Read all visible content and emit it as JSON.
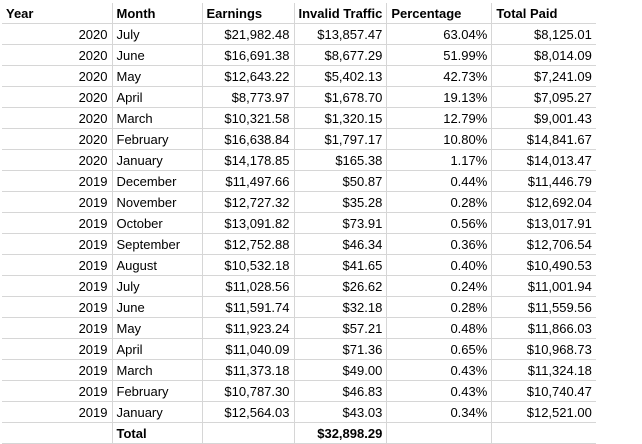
{
  "headers": [
    "Year",
    "Month",
    "Earnings",
    "Invalid Traffic",
    "Percentage",
    "Total Paid"
  ],
  "rows": [
    [
      "2020",
      "July",
      "$21,982.48",
      "$13,857.47",
      "63.04%",
      "$8,125.01"
    ],
    [
      "2020",
      "June",
      "$16,691.38",
      "$8,677.29",
      "51.99%",
      "$8,014.09"
    ],
    [
      "2020",
      "May",
      "$12,643.22",
      "$5,402.13",
      "42.73%",
      "$7,241.09"
    ],
    [
      "2020",
      "April",
      "$8,773.97",
      "$1,678.70",
      "19.13%",
      "$7,095.27"
    ],
    [
      "2020",
      "March",
      "$10,321.58",
      "$1,320.15",
      "12.79%",
      "$9,001.43"
    ],
    [
      "2020",
      "February",
      "$16,638.84",
      "$1,797.17",
      "10.80%",
      "$14,841.67"
    ],
    [
      "2020",
      "January",
      "$14,178.85",
      "$165.38",
      "1.17%",
      "$14,013.47"
    ],
    [
      "2019",
      "December",
      "$11,497.66",
      "$50.87",
      "0.44%",
      "$11,446.79"
    ],
    [
      "2019",
      "November",
      "$12,727.32",
      "$35.28",
      "0.28%",
      "$12,692.04"
    ],
    [
      "2019",
      "October",
      "$13,091.82",
      "$73.91",
      "0.56%",
      "$13,017.91"
    ],
    [
      "2019",
      "September",
      "$12,752.88",
      "$46.34",
      "0.36%",
      "$12,706.54"
    ],
    [
      "2019",
      "August",
      "$10,532.18",
      "$41.65",
      "0.40%",
      "$10,490.53"
    ],
    [
      "2019",
      "July",
      "$11,028.56",
      "$26.62",
      "0.24%",
      "$11,001.94"
    ],
    [
      "2019",
      "June",
      "$11,591.74",
      "$32.18",
      "0.28%",
      "$11,559.56"
    ],
    [
      "2019",
      "May",
      "$11,923.24",
      "$57.21",
      "0.48%",
      "$11,866.03"
    ],
    [
      "2019",
      "April",
      "$11,040.09",
      "$71.36",
      "0.65%",
      "$10,968.73"
    ],
    [
      "2019",
      "March",
      "$11,373.18",
      "$49.00",
      "0.43%",
      "$11,324.18"
    ],
    [
      "2019",
      "February",
      "$10,787.30",
      "$46.83",
      "0.43%",
      "$10,740.47"
    ],
    [
      "2019",
      "January",
      "$12,564.03",
      "$43.03",
      "0.34%",
      "$12,521.00"
    ]
  ],
  "total": {
    "label": "Total",
    "invalid_traffic": "$32,898.29"
  }
}
